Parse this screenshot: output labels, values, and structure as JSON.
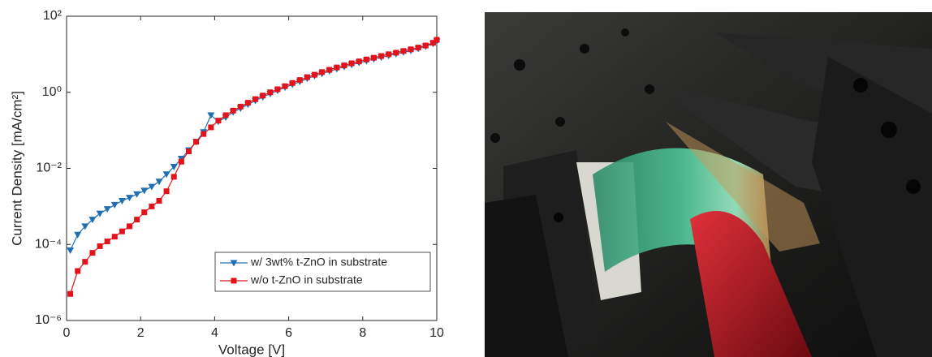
{
  "chart_data": {
    "type": "line",
    "x_label": "Voltage [V]",
    "y_label": "Current Density [mA/cm²]",
    "log_y": true,
    "xlim": [
      0,
      10
    ],
    "xticks": [
      0,
      2,
      4,
      6,
      8,
      10
    ],
    "ylim": [
      1e-06,
      100
    ],
    "yticks": [
      {
        "value": 1e-06,
        "label": "10⁻⁶"
      },
      {
        "value": 0.0001,
        "label": "10⁻⁴"
      },
      {
        "value": 0.01,
        "label": "10⁻²"
      },
      {
        "value": 1,
        "label": "10⁰"
      },
      {
        "value": 100,
        "label": "10²"
      }
    ],
    "legend": "lower right",
    "x": [
      0.1,
      0.3,
      0.5,
      0.7,
      0.9,
      1.1,
      1.3,
      1.5,
      1.7,
      1.9,
      2.1,
      2.3,
      2.5,
      2.7,
      2.9,
      3.1,
      3.3,
      3.5,
      3.7,
      3.9,
      4.1,
      4.3,
      4.5,
      4.7,
      4.9,
      5.1,
      5.3,
      5.5,
      5.7,
      5.9,
      6.1,
      6.3,
      6.5,
      6.7,
      6.9,
      7.1,
      7.3,
      7.5,
      7.7,
      7.9,
      8.1,
      8.3,
      8.5,
      8.7,
      8.9,
      9.1,
      9.3,
      9.5,
      9.7,
      9.9,
      10
    ],
    "series": [
      {
        "name": "w/ 3wt% t-ZnO in substrate",
        "color": "#1f6fb2",
        "marker": "triangle-down",
        "values": [
          7e-05,
          0.00018,
          0.0003,
          0.00045,
          0.00065,
          0.00085,
          0.0011,
          0.0014,
          0.0017,
          0.0021,
          0.0026,
          0.0033,
          0.0045,
          0.007,
          0.011,
          0.018,
          0.03,
          0.05,
          0.09,
          0.25,
          0.17,
          0.22,
          0.3,
          0.38,
          0.48,
          0.6,
          0.75,
          0.92,
          1.1,
          1.35,
          1.6,
          1.9,
          2.3,
          2.7,
          3.1,
          3.6,
          4.1,
          4.7,
          5.3,
          6,
          6.7,
          7.5,
          8.3,
          9.2,
          10.2,
          11.3,
          12.5,
          14,
          16,
          19,
          22
        ]
      },
      {
        "name": "w/o t-ZnO in substrate",
        "color": "#e3121b",
        "marker": "square",
        "values": [
          5e-06,
          2e-05,
          3.5e-05,
          6e-05,
          9e-05,
          0.00012,
          0.00016,
          0.00022,
          0.0003,
          0.00045,
          0.0007,
          0.001,
          0.0014,
          0.0025,
          0.006,
          0.015,
          0.028,
          0.05,
          0.08,
          0.12,
          0.18,
          0.25,
          0.33,
          0.42,
          0.53,
          0.66,
          0.82,
          1.0,
          1.2,
          1.45,
          1.75,
          2.1,
          2.5,
          2.9,
          3.4,
          3.9,
          4.5,
          5.1,
          5.8,
          6.5,
          7.3,
          8.1,
          9,
          10,
          11,
          12.2,
          13.5,
          15,
          17,
          20,
          24
        ]
      }
    ]
  }
}
